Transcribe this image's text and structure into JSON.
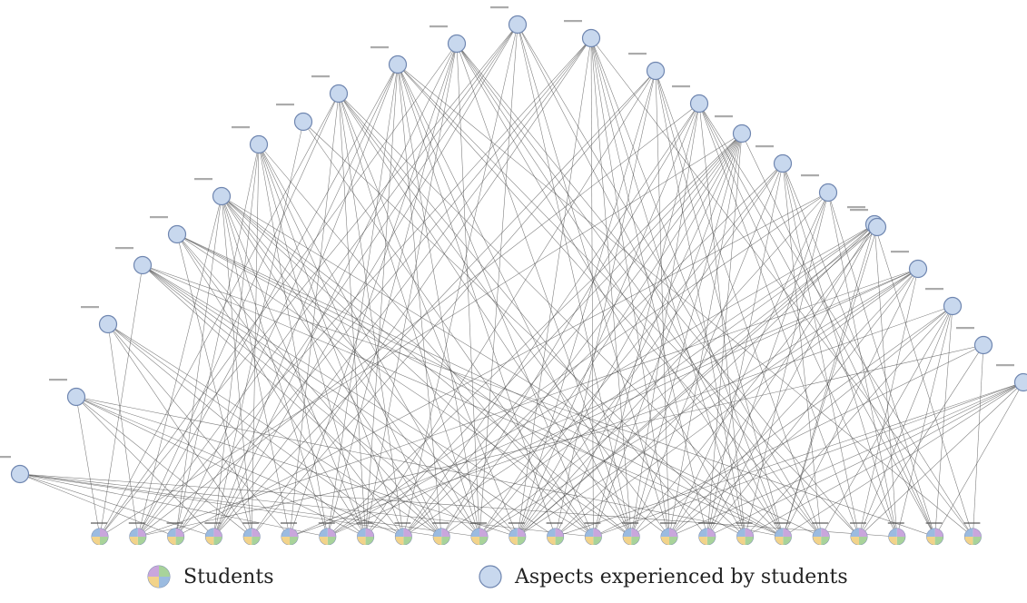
{
  "legend": {
    "students_label": "Students",
    "aspects_label": "Aspects experienced by students"
  },
  "colors": {
    "aspect_fill": "#c8d8ee",
    "aspect_stroke": "#6f86b0",
    "edge": "#4a4a4a",
    "student_segments": [
      "#c9a6dc",
      "#a8d39a",
      "#f2d38a",
      "#9bbbe0"
    ]
  },
  "network": {
    "aspect_count": 24,
    "student_count": 24
  }
}
